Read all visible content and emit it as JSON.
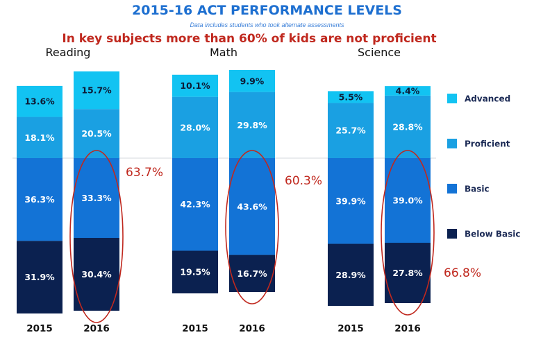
{
  "header": {
    "title": "2015-16 ACT PERFORMANCE LEVELS",
    "subtitle": "Data includes students who took alternate assessments",
    "headline": "In key subjects more than 60% of kids are not proficient"
  },
  "colors": {
    "Advanced": "#12c3f2",
    "Proficient": "#1aa0e2",
    "Basic": "#1373d6",
    "Below Basic": "#0b2150",
    "annotation": "#c0281e"
  },
  "chart_data": {
    "type": "bar",
    "stacked": true,
    "title": "2015-16 ACT PERFORMANCE LEVELS",
    "legend": [
      "Advanced",
      "Proficient",
      "Basic",
      "Below Basic"
    ],
    "legend_position": "right",
    "groups": [
      {
        "subject": "Reading",
        "bars": [
          {
            "year": "2015",
            "levels": {
              "Advanced": 13.6,
              "Proficient": 18.1,
              "Basic": 36.3,
              "Below Basic": 31.9
            }
          },
          {
            "year": "2016",
            "levels": {
              "Advanced": 15.7,
              "Proficient": 20.5,
              "Basic": 33.3,
              "Below Basic": 30.4
            }
          }
        ],
        "annotation": "63.7%"
      },
      {
        "subject": "Math",
        "bars": [
          {
            "year": "2015",
            "levels": {
              "Advanced": 10.1,
              "Proficient": 28.0,
              "Basic": 42.3,
              "Below Basic": 19.5
            }
          },
          {
            "year": "2016",
            "levels": {
              "Advanced": 9.9,
              "Proficient": 29.8,
              "Basic": 43.6,
              "Below Basic": 16.7
            }
          }
        ],
        "annotation": "60.3%"
      },
      {
        "subject": "Science",
        "bars": [
          {
            "year": "2015",
            "levels": {
              "Advanced": 5.5,
              "Proficient": 25.7,
              "Basic": 39.9,
              "Below Basic": 28.9
            }
          },
          {
            "year": "2016",
            "levels": {
              "Advanced": 4.4,
              "Proficient": 28.8,
              "Basic": 39.0,
              "Below Basic": 27.8
            }
          }
        ],
        "annotation": "66.8%"
      }
    ]
  }
}
